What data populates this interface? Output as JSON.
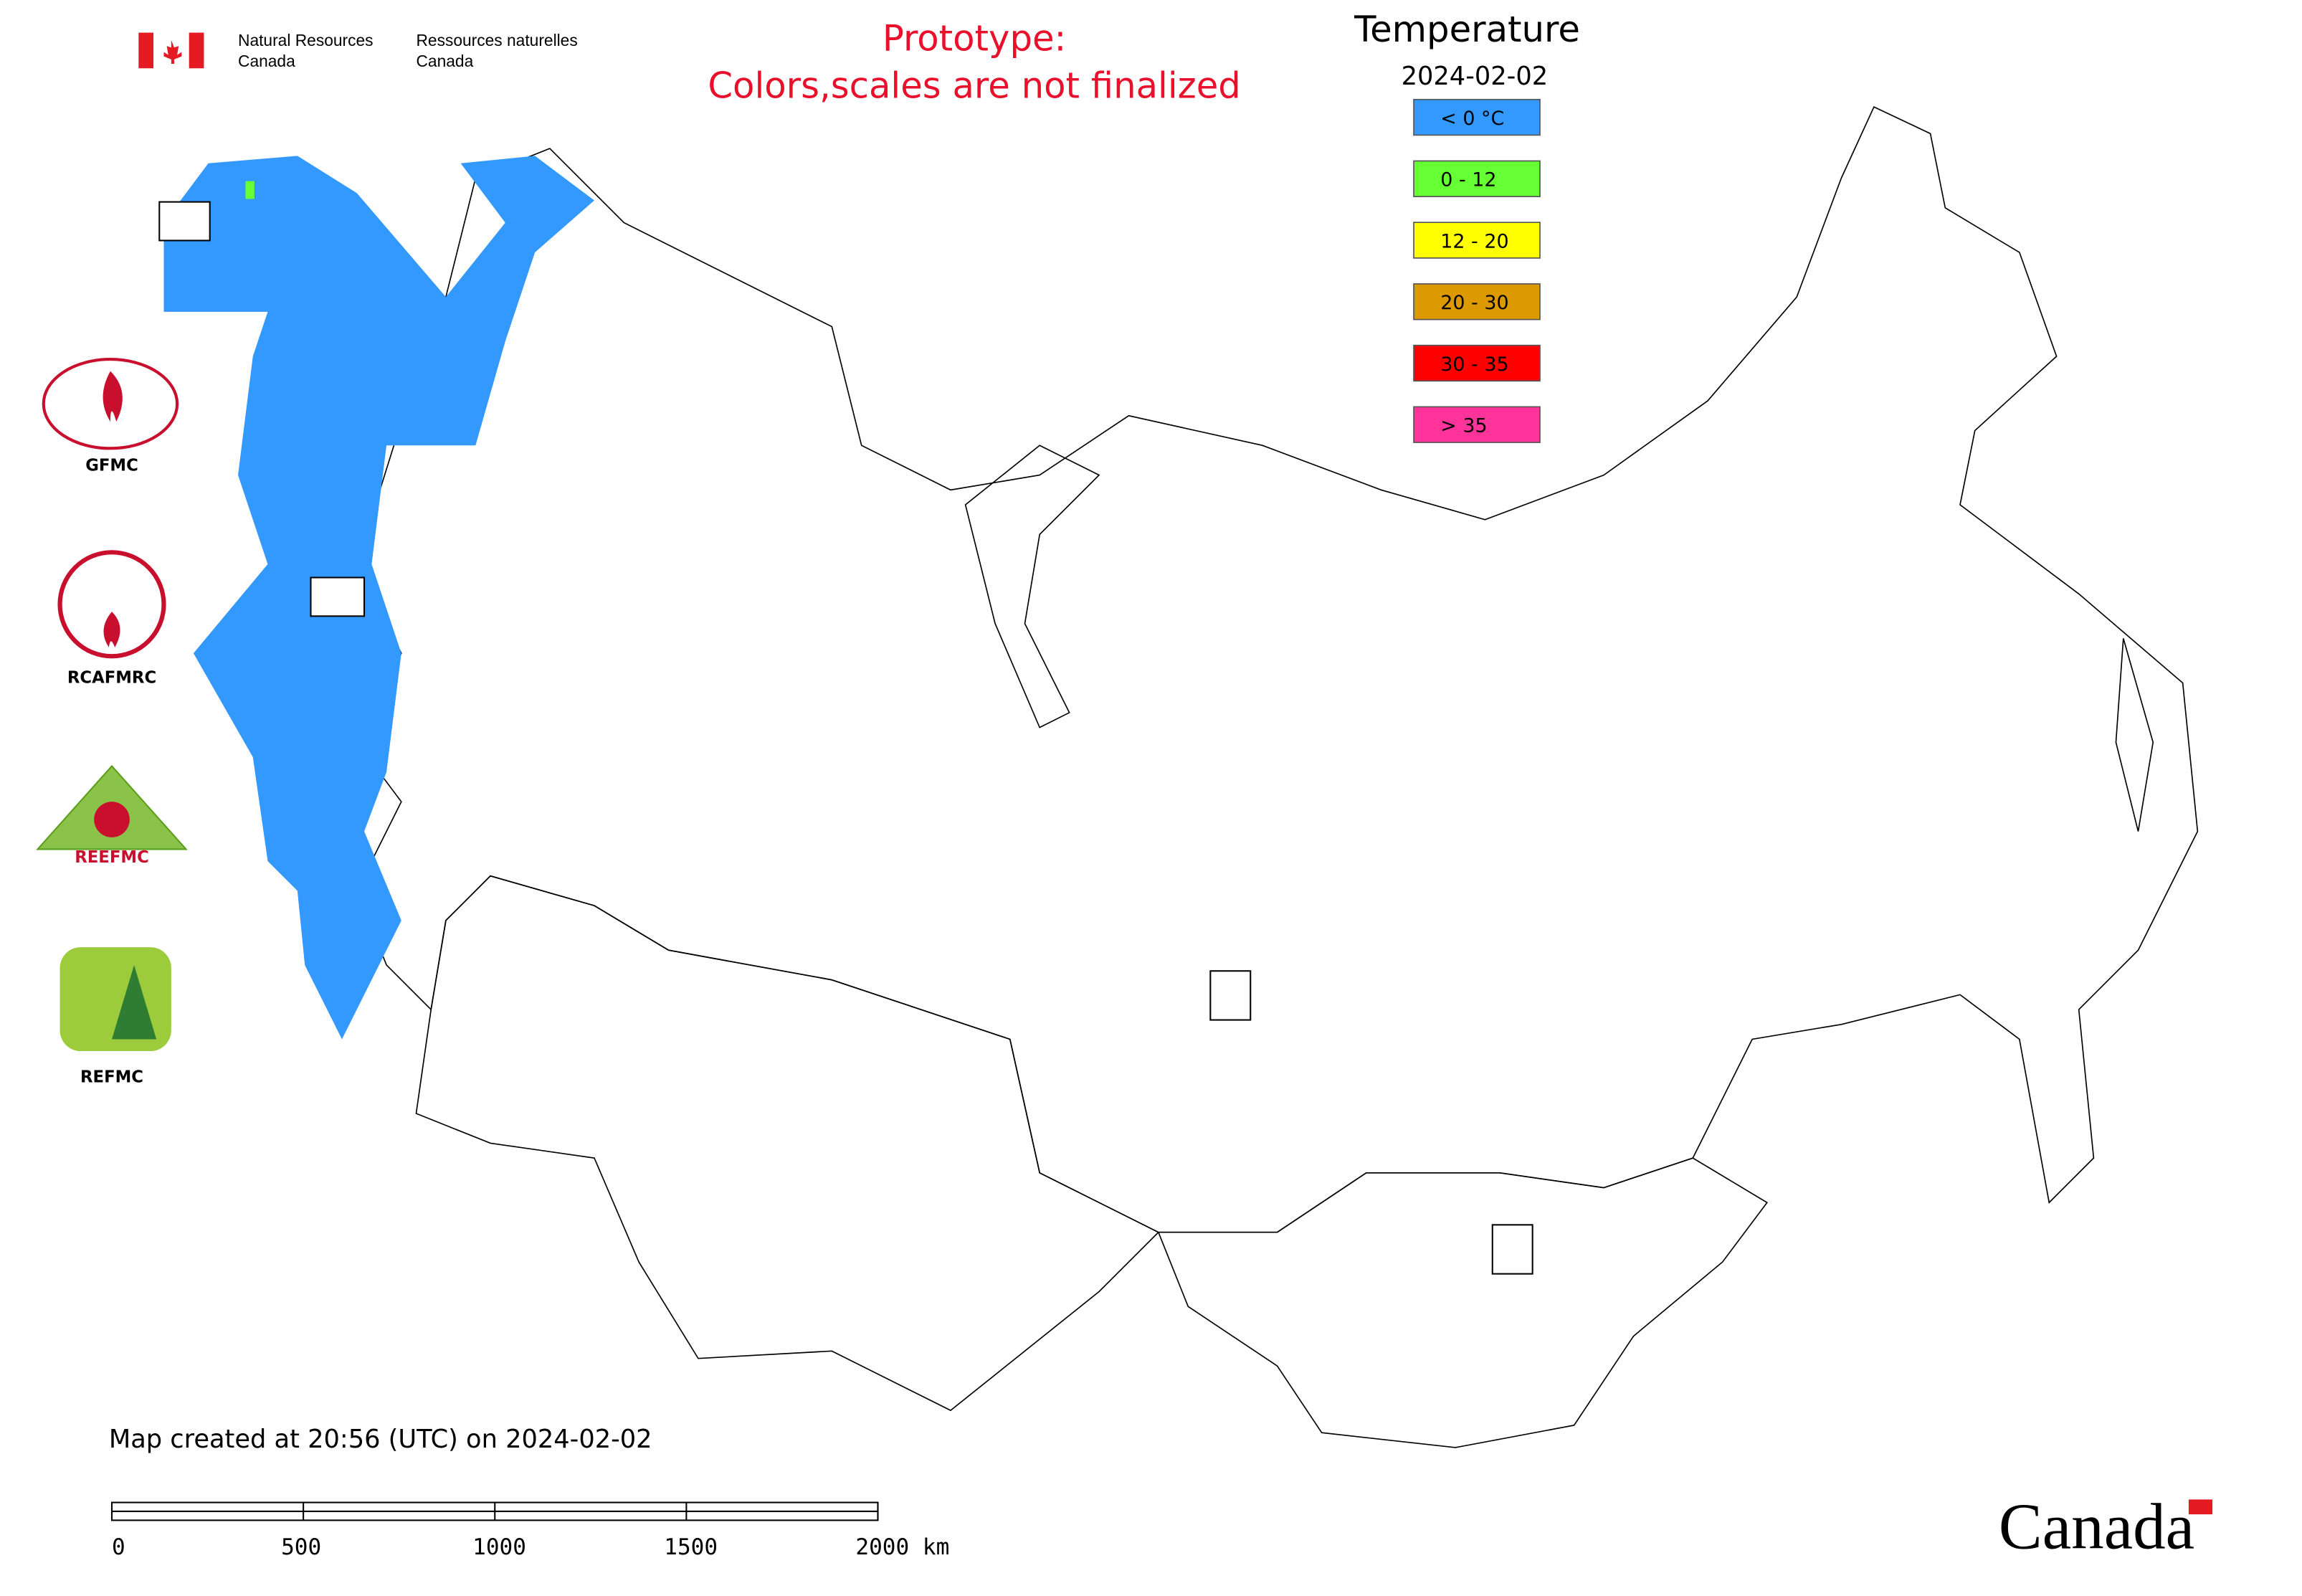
{
  "header": {
    "org_en": [
      "Natural Resources",
      "Canada"
    ],
    "org_fr": [
      "Ressources naturelles",
      "Canada"
    ]
  },
  "notice": [
    "Prototype:",
    "Colors,scales are not finalized"
  ],
  "legend": {
    "title": "Temperature",
    "date": "2024-02-02",
    "items": [
      {
        "label": "< 0 °C",
        "color": "#3399ff"
      },
      {
        "label": "0 - 12",
        "color": "#66ff33"
      },
      {
        "label": "12 - 20",
        "color": "#ffff00"
      },
      {
        "label": "20 - 30",
        "color": "#dd9900"
      },
      {
        "label": "30 - 35",
        "color": "#ff0000"
      },
      {
        "label": "> 35",
        "color": "#ff3399"
      }
    ]
  },
  "logos": [
    "GFMC",
    "RCAFMRC",
    "REEFMC",
    "REFMC"
  ],
  "footer": "Map created at 20:56 (UTC) on 2024-02-02",
  "scale_bar": [
    "0",
    "500",
    "1000",
    "1500",
    "2000 km"
  ],
  "wordmark": "Canada"
}
